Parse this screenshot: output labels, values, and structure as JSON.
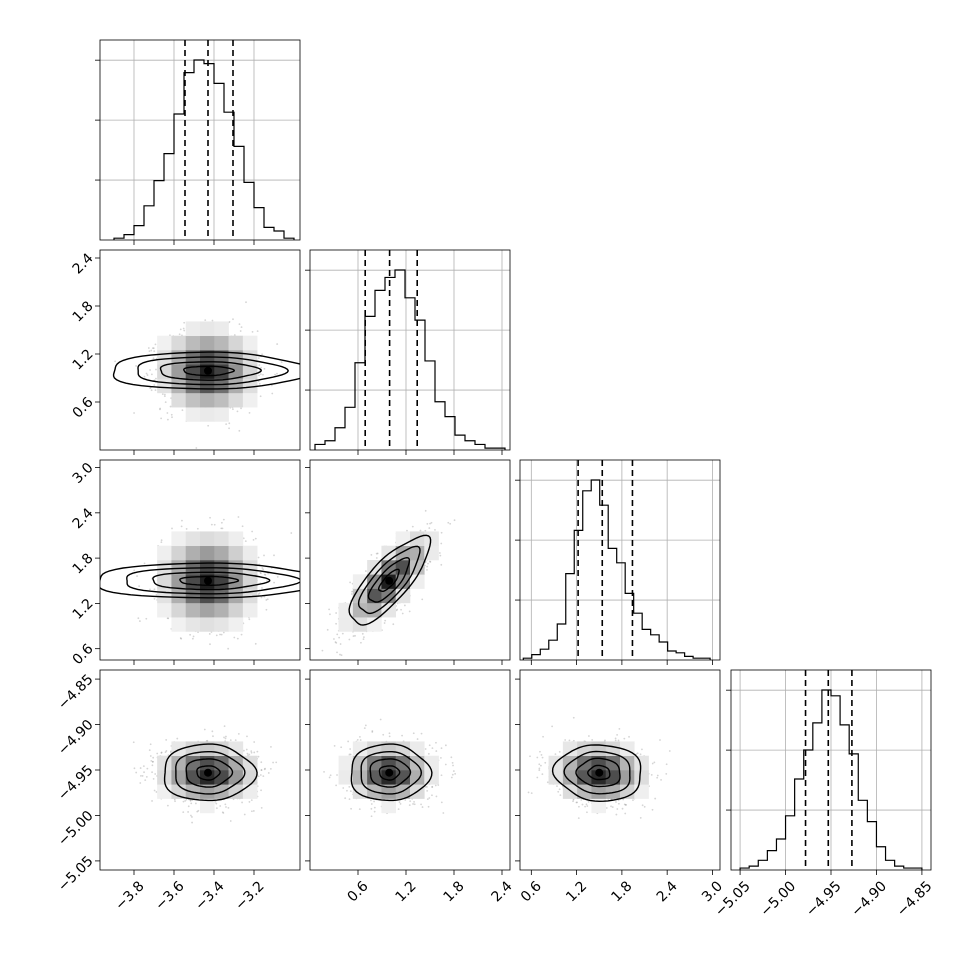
{
  "chart_data": {
    "type": "corner",
    "title": "",
    "n_params": 4,
    "parameter_labels": [
      "",
      "",
      "",
      ""
    ],
    "colors": {
      "frame": "#000000",
      "grid": "#b0b0b0",
      "hist": "#000000",
      "quantile_line": "#000000",
      "scatter": "#888888",
      "density_dark": "#000000"
    },
    "grid": true,
    "parameters": [
      {
        "range": [
          -3.97,
          -2.97
        ],
        "ticks": [
          -3.8,
          -3.6,
          -3.4,
          -3.2
        ],
        "tick_labels": [
          "−3.8",
          "−3.6",
          "−3.4",
          "−3.2"
        ],
        "quantiles": [
          -3.545,
          -3.43,
          -3.305
        ],
        "hist_x": [
          -3.875,
          -3.825,
          -3.775,
          -3.725,
          -3.675,
          -3.625,
          -3.575,
          -3.525,
          -3.475,
          -3.425,
          -3.375,
          -3.325,
          -3.275,
          -3.225,
          -3.175,
          -3.125,
          -3.075,
          -3.025
        ],
        "hist_y": [
          0.01,
          0.03,
          0.08,
          0.19,
          0.33,
          0.48,
          0.7,
          0.93,
          1.0,
          0.98,
          0.87,
          0.71,
          0.52,
          0.32,
          0.18,
          0.07,
          0.05,
          0.01
        ]
      },
      {
        "range": [
          0.0,
          2.5
        ],
        "ticks": [
          0.6,
          1.2,
          1.8,
          2.4
        ],
        "tick_labels": [
          "0.6",
          "1.2",
          "1.8",
          "2.4"
        ],
        "quantiles": [
          0.69,
          0.995,
          1.34
        ],
        "hist_x": [
          0.125,
          0.25,
          0.375,
          0.5,
          0.625,
          0.75,
          0.875,
          1.0,
          1.125,
          1.25,
          1.375,
          1.5,
          1.625,
          1.75,
          1.875,
          2.0,
          2.125,
          2.25,
          2.375
        ],
        "hist_y": [
          0.03,
          0.05,
          0.12,
          0.23,
          0.47,
          0.72,
          0.86,
          0.93,
          0.97,
          0.82,
          0.7,
          0.48,
          0.26,
          0.18,
          0.08,
          0.05,
          0.03,
          0.01,
          0.01
        ]
      },
      {
        "range": [
          0.45,
          3.1
        ],
        "ticks": [
          0.6,
          1.2,
          1.8,
          2.4,
          3.0
        ],
        "tick_labels": [
          "0.6",
          "1.2",
          "1.8",
          "2.4",
          "3.0"
        ],
        "quantiles": [
          1.22,
          1.54,
          1.94
        ],
        "hist_x": [
          0.55,
          0.6625,
          0.775,
          0.8875,
          1.0,
          1.1125,
          1.225,
          1.3375,
          1.45,
          1.5625,
          1.675,
          1.7875,
          1.9,
          2.0125,
          2.125,
          2.2375,
          2.35,
          2.4625,
          2.575,
          2.6875,
          2.8,
          2.9125
        ],
        "hist_y": [
          0.01,
          0.03,
          0.06,
          0.11,
          0.2,
          0.48,
          0.72,
          0.94,
          1.0,
          0.86,
          0.62,
          0.54,
          0.37,
          0.26,
          0.17,
          0.14,
          0.1,
          0.05,
          0.04,
          0.02,
          0.01,
          0.01
        ]
      },
      {
        "range": [
          -5.06,
          -4.84
        ],
        "ticks": [
          -5.05,
          -5.0,
          -4.95,
          -4.9,
          -4.85
        ],
        "tick_labels": [
          "−5.05",
          "−5.00",
          "−4.95",
          "−4.90",
          "−4.85"
        ],
        "quantiles": [
          -4.978,
          -4.953,
          -4.927
        ],
        "hist_x": [
          -5.045,
          -5.035,
          -5.025,
          -5.015,
          -5.005,
          -4.995,
          -4.985,
          -4.975,
          -4.965,
          -4.955,
          -4.945,
          -4.935,
          -4.925,
          -4.915,
          -4.905,
          -4.895,
          -4.885,
          -4.875,
          -4.865,
          -4.855
        ],
        "hist_y": [
          0.01,
          0.02,
          0.05,
          0.1,
          0.16,
          0.28,
          0.47,
          0.62,
          0.76,
          0.93,
          0.9,
          0.75,
          0.6,
          0.36,
          0.25,
          0.12,
          0.05,
          0.02,
          0.01,
          0.01
        ]
      }
    ],
    "pairs": [
      {
        "row": 1,
        "col": 0,
        "mean": [
          -3.43,
          0.99
        ],
        "sd": [
          0.115,
          0.25
        ],
        "corr": 0.0,
        "n_points": 1400
      },
      {
        "row": 2,
        "col": 0,
        "mean": [
          -3.43,
          1.5
        ],
        "sd": [
          0.115,
          0.29
        ],
        "corr": 0.0,
        "n_points": 1400
      },
      {
        "row": 2,
        "col": 1,
        "mean": [
          0.99,
          1.5
        ],
        "sd": [
          0.25,
          0.29
        ],
        "corr": 0.78,
        "n_points": 1400
      },
      {
        "row": 3,
        "col": 0,
        "mean": [
          -3.43,
          -4.953
        ],
        "sd": [
          0.115,
          0.0155
        ],
        "corr": 0.0,
        "n_points": 1400
      },
      {
        "row": 3,
        "col": 1,
        "mean": [
          0.99,
          -4.953
        ],
        "sd": [
          0.25,
          0.0155
        ],
        "corr": 0.0,
        "n_points": 1400
      },
      {
        "row": 3,
        "col": 2,
        "mean": [
          1.5,
          -4.953
        ],
        "sd": [
          0.29,
          0.0155
        ],
        "corr": -0.05,
        "n_points": 1400
      }
    ],
    "contour_levels_sigma": [
      0.5,
      1.0,
      1.5,
      2.0
    ]
  }
}
